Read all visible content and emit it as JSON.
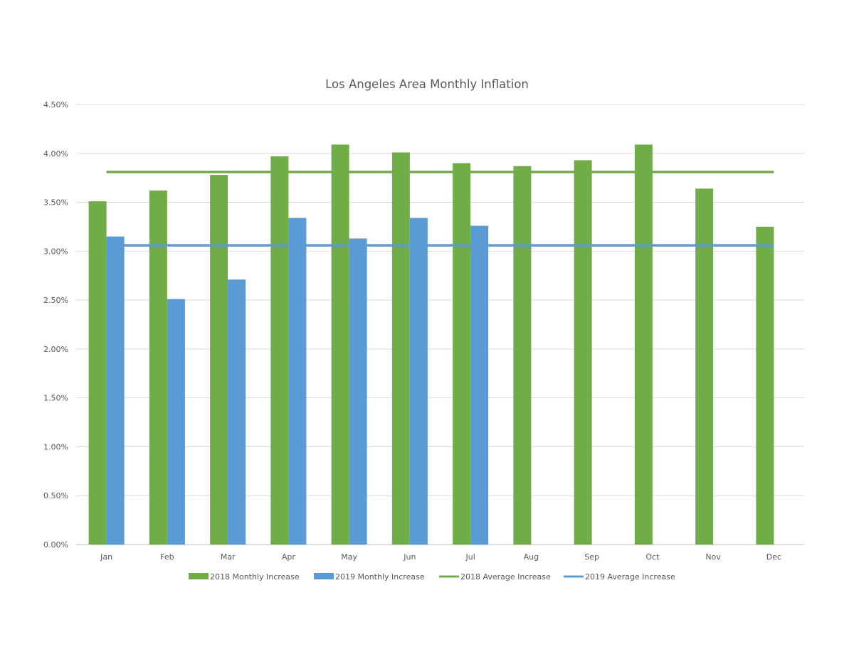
{
  "chart_data": {
    "type": "bar",
    "title": "Los Angeles Area Monthly Inflation",
    "xlabel": "",
    "ylabel": "",
    "categories": [
      "Jan",
      "Feb",
      "Mar",
      "Apr",
      "May",
      "Jun",
      "Jul",
      "Aug",
      "Sep",
      "Oct",
      "Nov",
      "Dec"
    ],
    "y_ticks": [
      "0.00%",
      "0.50%",
      "1.00%",
      "1.50%",
      "2.00%",
      "2.50%",
      "3.00%",
      "3.50%",
      "4.00%",
      "4.50%"
    ],
    "ylim": [
      0,
      4.5
    ],
    "grid": true,
    "legend_position": "bottom",
    "series": [
      {
        "name": "2018 Monthly Increase",
        "kind": "bar",
        "color": "#70ad47",
        "values": [
          3.51,
          3.62,
          3.78,
          3.97,
          4.09,
          4.01,
          3.9,
          3.87,
          3.93,
          4.09,
          3.64,
          3.25
        ]
      },
      {
        "name": "2019 Monthly Increase",
        "kind": "bar",
        "color": "#5b9bd5",
        "values": [
          3.15,
          2.51,
          2.71,
          3.34,
          3.13,
          3.34,
          3.26,
          null,
          null,
          null,
          null,
          null
        ]
      },
      {
        "name": "2018 Average Increase",
        "kind": "line",
        "color": "#70ad47",
        "values": [
          3.81,
          3.81,
          3.81,
          3.81,
          3.81,
          3.81,
          3.81,
          3.81,
          3.81,
          3.81,
          3.81,
          3.81
        ]
      },
      {
        "name": "2019 Average Increase",
        "kind": "line",
        "color": "#5b9bd5",
        "values": [
          3.06,
          3.06,
          3.06,
          3.06,
          3.06,
          3.06,
          3.06,
          3.06,
          3.06,
          3.06,
          3.06,
          3.06
        ]
      }
    ],
    "colors": {
      "grid": "#d9d9d9",
      "text": "#595959",
      "axis": "#bfbfbf"
    }
  }
}
